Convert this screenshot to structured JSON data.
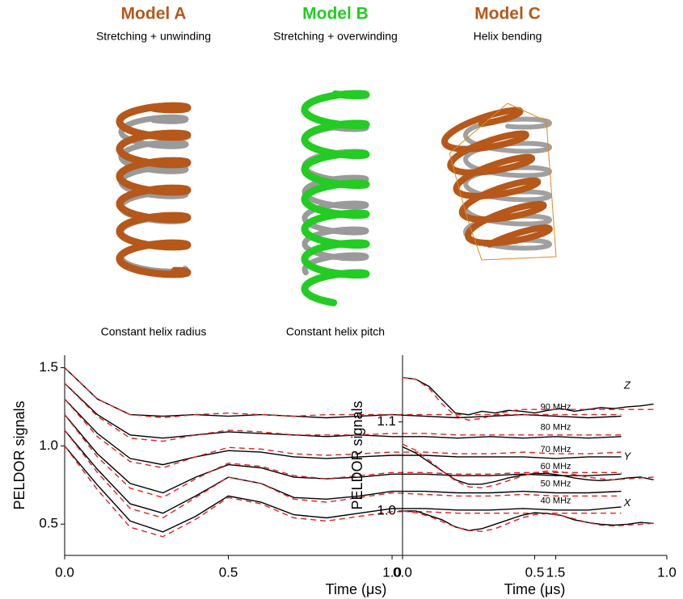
{
  "models": [
    {
      "title": "Model A",
      "subtitle": "Stretching + unwinding",
      "color": "#b5581a"
    },
    {
      "title": "Model B",
      "subtitle": "Stretching + overwinding",
      "color": "#22cc22"
    },
    {
      "title": "Model C",
      "subtitle": "Helix bending",
      "color": "#b5581a"
    }
  ],
  "captions": [
    "Constant helix radius",
    "Constant helix pitch"
  ],
  "chart_data": [
    {
      "type": "line",
      "xlabel": "Time (μs)",
      "ylabel": "PELDOR signals",
      "xlim": [
        0,
        1.78
      ],
      "ylim": [
        0.3,
        1.58
      ],
      "xticks": [
        {
          "value": 0,
          "label": "0.0"
        },
        0.5,
        {
          "value": 1,
          "label": "1.0"
        },
        1.5
      ],
      "yticks": [
        0.5,
        {
          "value": 1,
          "label": "1.0"
        },
        1.5
      ],
      "x": [
        0,
        0.1,
        0.2,
        0.3,
        0.4,
        0.5,
        0.6,
        0.7,
        0.8,
        0.9,
        1.0,
        1.1,
        1.2,
        1.3,
        1.4,
        1.5,
        1.6,
        1.7
      ],
      "series": [
        {
          "name": "90 MHz",
          "color": "#000000",
          "values": [
            1.5,
            1.3,
            1.2,
            1.19,
            1.2,
            1.19,
            1.2,
            1.19,
            1.18,
            1.19,
            1.2,
            1.19,
            1.18,
            1.19,
            1.2,
            1.19,
            1.18,
            1.19
          ]
        },
        {
          "color": "#e02020",
          "style": "dashed",
          "values": [
            1.5,
            1.3,
            1.2,
            1.18,
            1.2,
            1.21,
            1.2,
            1.19,
            1.2,
            1.2,
            1.2,
            1.2,
            1.2,
            1.2,
            1.2,
            1.2,
            1.2,
            1.2
          ]
        },
        {
          "name": "80 MHz",
          "color": "#000000",
          "values": [
            1.4,
            1.2,
            1.07,
            1.05,
            1.07,
            1.09,
            1.08,
            1.07,
            1.06,
            1.07,
            1.06,
            1.06,
            1.05,
            1.06,
            1.05,
            1.06,
            1.05,
            1.06
          ]
        },
        {
          "color": "#e02020",
          "style": "dashed",
          "values": [
            1.4,
            1.19,
            1.05,
            1.03,
            1.07,
            1.1,
            1.09,
            1.07,
            1.07,
            1.07,
            1.08,
            1.08,
            1.07,
            1.07,
            1.07,
            1.07,
            1.07,
            1.07
          ]
        },
        {
          "name": "70 MHz",
          "color": "#000000",
          "values": [
            1.3,
            1.08,
            0.92,
            0.88,
            0.93,
            0.97,
            0.96,
            0.93,
            0.92,
            0.93,
            0.94,
            0.94,
            0.93,
            0.93,
            0.93,
            0.92,
            0.93,
            0.93
          ]
        },
        {
          "color": "#e02020",
          "style": "dashed",
          "values": [
            1.3,
            1.06,
            0.9,
            0.86,
            0.93,
            0.99,
            0.98,
            0.95,
            0.94,
            0.95,
            0.96,
            0.96,
            0.95,
            0.95,
            0.96,
            0.95,
            0.95,
            0.96
          ]
        },
        {
          "name": "60 MHz",
          "color": "#000000",
          "values": [
            1.2,
            0.95,
            0.76,
            0.7,
            0.8,
            0.88,
            0.86,
            0.8,
            0.79,
            0.8,
            0.82,
            0.82,
            0.81,
            0.81,
            0.82,
            0.81,
            0.81,
            0.82
          ]
        },
        {
          "color": "#e02020",
          "style": "dashed",
          "values": [
            1.2,
            0.93,
            0.73,
            0.67,
            0.79,
            0.89,
            0.87,
            0.81,
            0.79,
            0.81,
            0.83,
            0.83,
            0.82,
            0.82,
            0.83,
            0.83,
            0.83,
            0.83
          ]
        },
        {
          "name": "50 MHz",
          "color": "#000000",
          "values": [
            1.1,
            0.85,
            0.63,
            0.57,
            0.68,
            0.8,
            0.76,
            0.67,
            0.66,
            0.68,
            0.71,
            0.71,
            0.7,
            0.7,
            0.71,
            0.7,
            0.7,
            0.71
          ]
        },
        {
          "color": "#e02020",
          "style": "dashed",
          "values": [
            1.1,
            0.83,
            0.6,
            0.54,
            0.67,
            0.8,
            0.76,
            0.66,
            0.64,
            0.67,
            0.7,
            0.69,
            0.68,
            0.68,
            0.69,
            0.68,
            0.68,
            0.68
          ]
        },
        {
          "name": "40 MHz",
          "color": "#000000",
          "values": [
            1.0,
            0.75,
            0.52,
            0.45,
            0.55,
            0.68,
            0.64,
            0.56,
            0.54,
            0.57,
            0.6,
            0.6,
            0.59,
            0.59,
            0.6,
            0.59,
            0.59,
            0.61
          ]
        },
        {
          "color": "#e02020",
          "style": "dashed",
          "values": [
            1.0,
            0.72,
            0.48,
            0.42,
            0.53,
            0.67,
            0.63,
            0.54,
            0.52,
            0.55,
            0.58,
            0.58,
            0.57,
            0.57,
            0.57,
            0.57,
            0.57,
            0.57
          ]
        }
      ]
    },
    {
      "type": "line",
      "xlabel": "Time (μs)",
      "ylabel": "PELDOR signals",
      "xlim": [
        0,
        1
      ],
      "ylim": [
        0.95,
        1.175
      ],
      "xticks": [
        {
          "value": 0,
          "label": "0.0"
        },
        0.5,
        {
          "value": 1,
          "label": "1.0"
        }
      ],
      "yticks": [
        {
          "value": 1,
          "label": "1.0"
        },
        1.1
      ],
      "x": [
        0,
        0.05,
        0.1,
        0.15,
        0.2,
        0.25,
        0.3,
        0.35,
        0.4,
        0.45,
        0.5,
        0.55,
        0.6,
        0.65,
        0.7,
        0.75,
        0.8,
        0.85,
        0.9,
        0.95
      ],
      "series": [
        {
          "name": "Z",
          "color": "#000000",
          "values": [
            1.15,
            1.148,
            1.14,
            1.125,
            1.11,
            1.108,
            1.112,
            1.11,
            1.113,
            1.112,
            1.11,
            1.113,
            1.115,
            1.112,
            1.114,
            1.116,
            1.115,
            1.117,
            1.118,
            1.12
          ]
        },
        {
          "color": "#e02020",
          "style": "dashed",
          "values": [
            1.15,
            1.148,
            1.138,
            1.12,
            1.107,
            1.102,
            1.104,
            1.108,
            1.112,
            1.114,
            1.114,
            1.114,
            1.114,
            1.114,
            1.114,
            1.114,
            1.114,
            1.114,
            1.114,
            1.114
          ]
        },
        {
          "name": "Y",
          "color": "#000000",
          "values": [
            1.072,
            1.065,
            1.055,
            1.045,
            1.035,
            1.03,
            1.03,
            1.033,
            1.037,
            1.04,
            1.042,
            1.042,
            1.04,
            1.037,
            1.035,
            1.034,
            1.035,
            1.037,
            1.038,
            1.035
          ]
        },
        {
          "color": "#e02020",
          "style": "dashed",
          "values": [
            1.075,
            1.068,
            1.057,
            1.045,
            1.034,
            1.027,
            1.026,
            1.029,
            1.034,
            1.039,
            1.043,
            1.045,
            1.044,
            1.041,
            1.038,
            1.036,
            1.035,
            1.036,
            1.037,
            1.038
          ]
        },
        {
          "name": "X",
          "color": "#000000",
          "values": [
            1.0,
            1.0,
            0.995,
            0.99,
            0.982,
            0.978,
            0.98,
            0.985,
            0.99,
            0.995,
            0.998,
            0.997,
            0.995,
            0.99,
            0.987,
            0.985,
            0.984,
            0.985,
            0.987,
            0.986
          ]
        },
        {
          "color": "#e02020",
          "style": "dashed",
          "values": [
            1.0,
            0.998,
            0.994,
            0.988,
            0.982,
            0.978,
            0.977,
            0.98,
            0.986,
            0.992,
            0.996,
            0.997,
            0.995,
            0.991,
            0.987,
            0.984,
            0.983,
            0.984,
            0.985,
            0.986
          ]
        }
      ]
    }
  ]
}
